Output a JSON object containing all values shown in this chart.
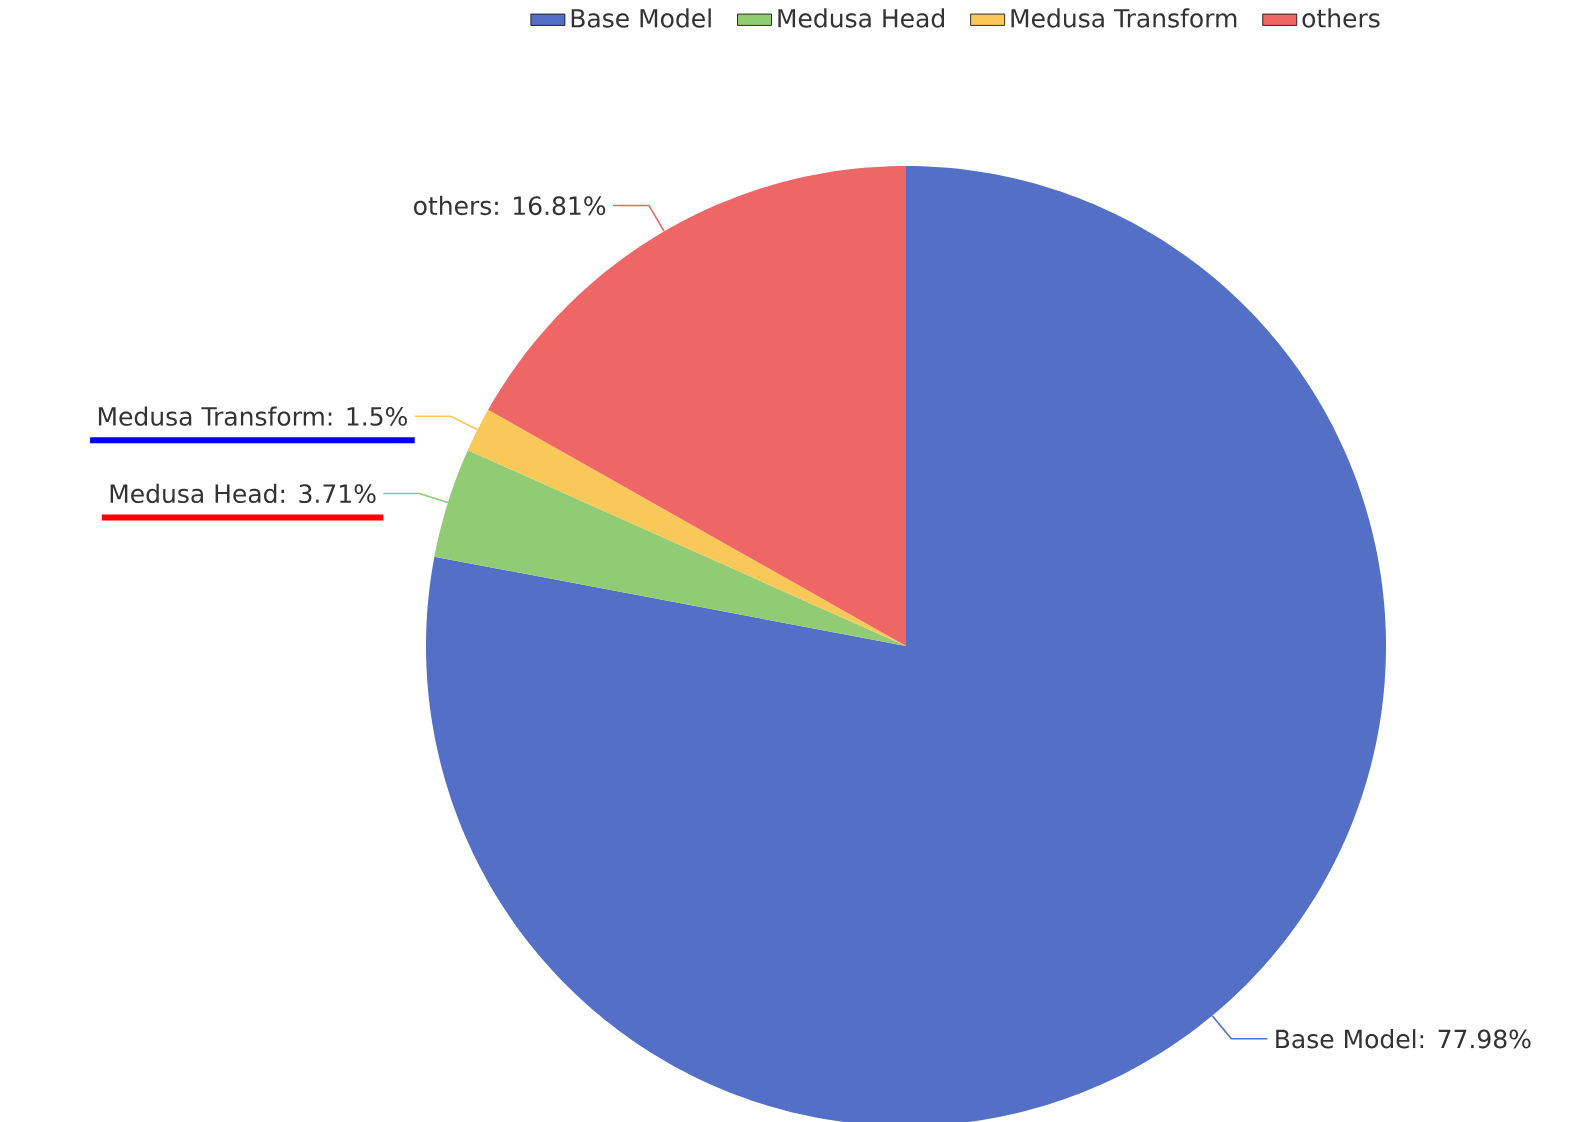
{
  "chart_data": {
    "type": "pie",
    "categories": [
      "Base Model",
      "Medusa Head",
      "Medusa Transform",
      "others"
    ],
    "values": [
      77.98,
      3.71,
      1.5,
      16.81
    ],
    "value_labels": [
      "Base Model: 77.98%",
      "Medusa Head: 3.71%",
      "Medusa Transform: 1.5%",
      "others: 16.81%"
    ],
    "colors": [
      "#5470c6",
      "#91cc75",
      "#fac858",
      "#ee6666"
    ],
    "legend": "top"
  }
}
